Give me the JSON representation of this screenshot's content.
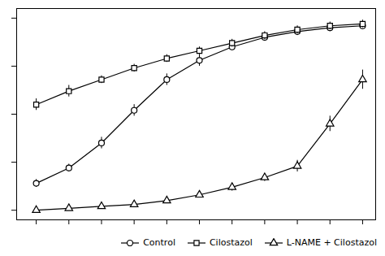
{
  "chart_data": {
    "type": "line",
    "x": [
      -9,
      -8.5,
      -8,
      -7.5,
      -7,
      -6.5,
      -6,
      -5.5,
      -5,
      -4.5,
      -4
    ],
    "series": [
      {
        "name": "Control",
        "color": "#000000",
        "marker": "circle",
        "values": [
          14,
          22,
          35,
          52,
          68,
          78,
          85,
          90,
          93,
          95,
          96
        ],
        "errors": [
          2,
          2,
          3,
          3,
          3,
          3,
          2,
          2,
          2,
          2,
          2
        ]
      },
      {
        "name": "Cilostazol",
        "color": "#000000",
        "marker": "square",
        "values": [
          55,
          62,
          68,
          74,
          79,
          83,
          87,
          91,
          94,
          96,
          97
        ],
        "errors": [
          3,
          3,
          2,
          2,
          2,
          2,
          2,
          2,
          2,
          2,
          2
        ]
      },
      {
        "name": "L-NAME + Cilostazol",
        "color": "#000000",
        "marker": "triangle",
        "values": [
          0,
          1,
          2,
          3,
          5,
          8,
          12,
          17,
          23,
          45,
          68
        ],
        "errors": [
          0.5,
          0.5,
          0.5,
          1,
          1,
          1.5,
          2,
          2,
          3,
          4,
          5
        ]
      }
    ],
    "xlim": [
      -9.3,
      -3.8
    ],
    "ylim": [
      -5,
      105
    ],
    "xticks": [
      -9,
      -8.5,
      -8,
      -7.5,
      -7,
      -6.5,
      -6,
      -5.5,
      -5,
      -4.5,
      -4
    ],
    "yticks": [
      0,
      25,
      50,
      75,
      100
    ],
    "tick_labels": false,
    "grid": false,
    "legend": "lower right"
  }
}
